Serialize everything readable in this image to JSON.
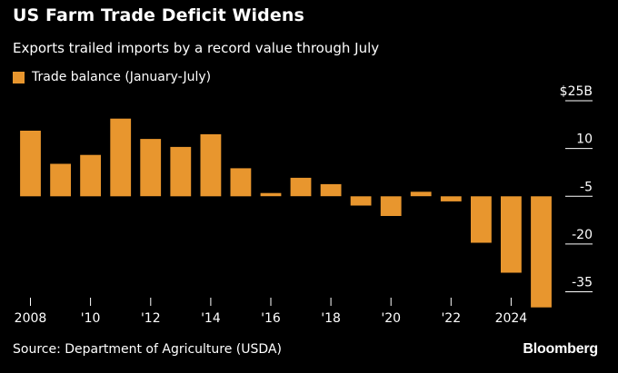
{
  "header": {
    "title": "US Farm Trade Deficit Widens",
    "subtitle": "Exports trailed imports by a record value through July"
  },
  "legend": {
    "label": "Trade balance (January-July)"
  },
  "footer": {
    "source": "Source: Department of Agriculture (USDA)",
    "brand": "Bloomberg"
  },
  "colors": {
    "bar": "#e8962e",
    "background": "#000000",
    "text": "#ffffff",
    "axis": "#ffffff"
  },
  "chart_data": {
    "type": "bar",
    "title": "US Farm Trade Deficit Widens",
    "subtitle": "Exports trailed imports by a record value through July",
    "categories": [
      "2008",
      "2009",
      "2010",
      "2011",
      "2012",
      "2013",
      "2014",
      "2015",
      "2016",
      "2017",
      "2018",
      "2019",
      "2020",
      "2021",
      "2022",
      "2023",
      "2024",
      "2025"
    ],
    "series": [
      {
        "name": "Trade balance (January-July)",
        "values": [
          15.6,
          5.2,
          8.0,
          19.4,
          13.0,
          10.5,
          14.5,
          3.8,
          -4.0,
          0.8,
          -1.2,
          -7.9,
          -11.2,
          -3.6,
          -6.6,
          -19.6,
          -29.0,
          -39.9
        ]
      }
    ],
    "x_tick_labels": [
      "2008",
      "'10",
      "'12",
      "'14",
      "'16",
      "'18",
      "'20",
      "'22",
      "2024"
    ],
    "x_tick_years": [
      2008,
      2010,
      2012,
      2014,
      2016,
      2018,
      2020,
      2022,
      2024
    ],
    "y_ticks": [
      25,
      10,
      -5,
      -20,
      -35
    ],
    "y_tick_labels": [
      "$25B",
      "10",
      "-5",
      "-20",
      "-35"
    ],
    "ylim": [
      -38,
      29
    ],
    "baseline": -5,
    "grid": false,
    "legend_position": "top-left"
  }
}
